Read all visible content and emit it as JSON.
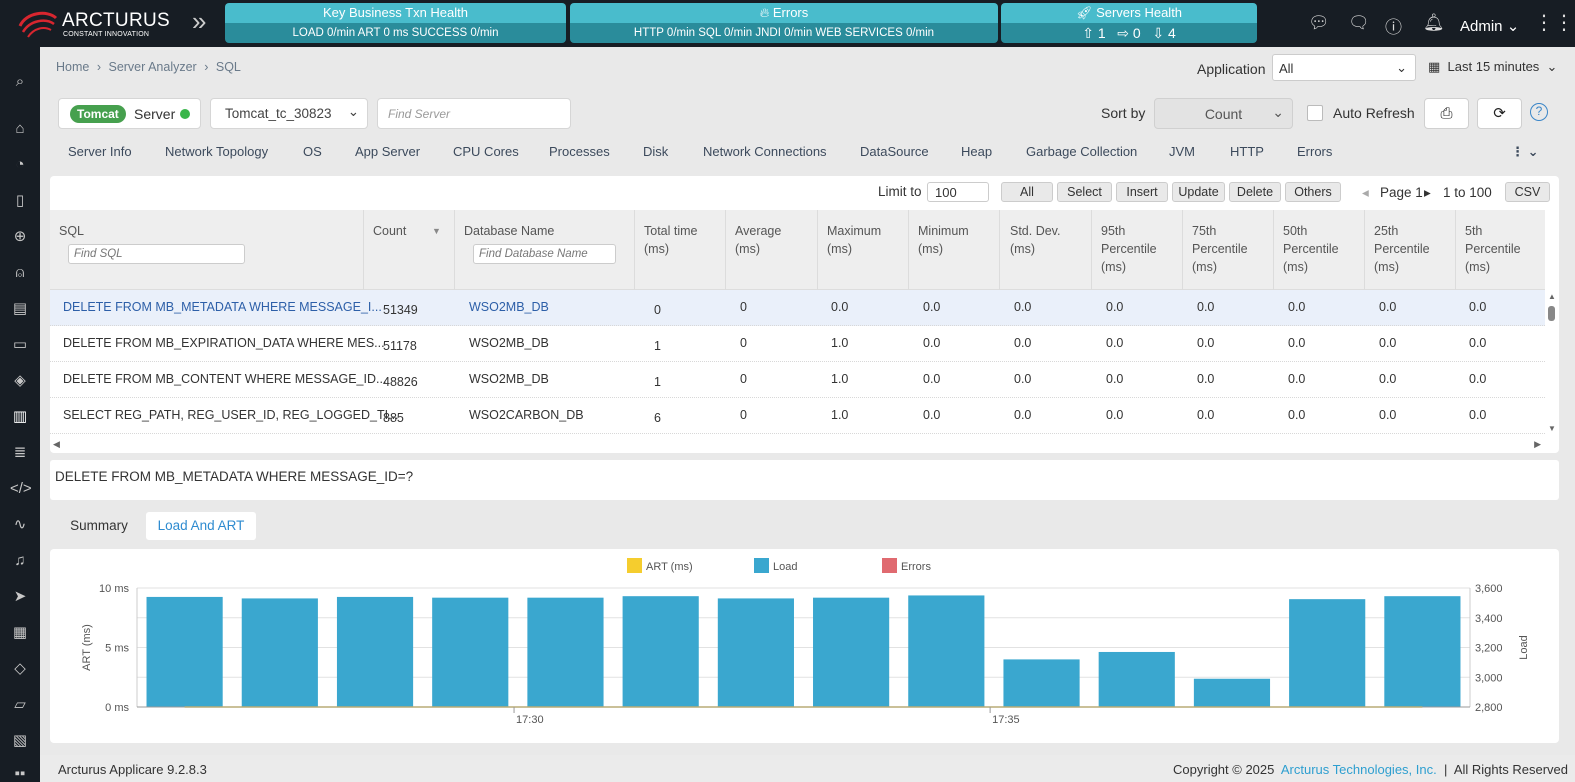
{
  "app": {
    "brand": "ARCTURUS",
    "tagline": "CONSTANT INNOVATION",
    "user": "Admin"
  },
  "kpis": [
    {
      "title": "Key Business Txn Health",
      "detail": "LOAD 0/min   ART 0 ms   SUCCESS 0/min"
    },
    {
      "title": "Errors",
      "detail": "HTTP 0/min   SQL 0/min   JNDI 0/min   WEB SERVICES 0/min"
    },
    {
      "title": "Servers Health",
      "up": "1",
      "right": "0",
      "down": "4"
    }
  ],
  "breadcrumb": [
    "Home",
    "Server Analyzer",
    "SQL"
  ],
  "breadcrumb_sep": "›",
  "application": {
    "label": "Application",
    "value": "All"
  },
  "time_range": "Last 15 minutes",
  "server": {
    "badge": "Tomcat",
    "label": "Server",
    "selected": "Tomcat_tc_30823",
    "find_placeholder": "Find Server"
  },
  "sort": {
    "label": "Sort by",
    "value": "Count"
  },
  "auto_refresh": {
    "label": "Auto Refresh",
    "checked": false
  },
  "tabs": [
    "Server Info",
    "Network Topology",
    "OS",
    "App Server",
    "CPU Cores",
    "Processes",
    "Disk",
    "Network Connections",
    "DataSource",
    "Heap",
    "Garbage Collection",
    "JVM",
    "HTTP",
    "Errors"
  ],
  "filters": {
    "limit_label": "Limit to",
    "limit_value": "100",
    "buttons": [
      "All",
      "Select",
      "Insert",
      "Update",
      "Delete",
      "Others"
    ],
    "page": "Page 1",
    "range": "1 to 100",
    "csv": "CSV"
  },
  "table": {
    "columns": [
      "SQL",
      "Count",
      "Database Name",
      "Total time (ms)",
      "Average (ms)",
      "Maximum (ms)",
      "Minimum (ms)",
      "Std. Dev. (ms)",
      "95th Percentile (ms)",
      "75th Percentile (ms)",
      "50th Percentile (ms)",
      "25th Percentile (ms)",
      "5th Percentile (ms)"
    ],
    "column_lines": [
      [
        "SQL"
      ],
      [
        "Count"
      ],
      [
        "Database Name"
      ],
      [
        "Total time",
        "(ms)"
      ],
      [
        "Average",
        "(ms)"
      ],
      [
        "Maximum",
        "(ms)"
      ],
      [
        "Minimum",
        "(ms)"
      ],
      [
        "Std. Dev.",
        "(ms)"
      ],
      [
        "95th",
        "Percentile",
        "(ms)"
      ],
      [
        "75th",
        "Percentile",
        "(ms)"
      ],
      [
        "50th",
        "Percentile",
        "(ms)"
      ],
      [
        "25th",
        "Percentile",
        "(ms)"
      ],
      [
        "5th",
        "Percentile",
        "(ms)"
      ]
    ],
    "find_sql_placeholder": "Find SQL",
    "find_db_placeholder": "Find Database Name",
    "rows": [
      [
        "DELETE FROM MB_METADATA WHERE MESSAGE_I...",
        "51349",
        "WSO2MB_DB",
        "0",
        "0",
        "0.0",
        "0.0",
        "0.0",
        "0.0",
        "0.0",
        "0.0",
        "0.0",
        "0.0"
      ],
      [
        "DELETE FROM MB_EXPIRATION_DATA WHERE MES...",
        "51178",
        "WSO2MB_DB",
        "1",
        "0",
        "1.0",
        "0.0",
        "0.0",
        "0.0",
        "0.0",
        "0.0",
        "0.0",
        "0.0"
      ],
      [
        "DELETE FROM MB_CONTENT WHERE MESSAGE_ID...",
        "48826",
        "WSO2MB_DB",
        "1",
        "0",
        "1.0",
        "0.0",
        "0.0",
        "0.0",
        "0.0",
        "0.0",
        "0.0",
        "0.0"
      ],
      [
        "SELECT REG_PATH, REG_USER_ID, REG_LOGGED_TI...",
        "885",
        "WSO2CARBON_DB",
        "6",
        "0",
        "1.0",
        "0.0",
        "0.0",
        "0.0",
        "0.0",
        "0.0",
        "0.0",
        "0.0"
      ]
    ]
  },
  "selected_sql": "DELETE FROM MB_METADATA WHERE MESSAGE_ID=?",
  "subtabs": [
    "Summary",
    "Load And ART"
  ],
  "chart_data": {
    "type": "bar",
    "legend": [
      "ART (ms)",
      "Load",
      "Errors"
    ],
    "colors": {
      "art": "#f5cd2e",
      "load": "#3aa7cf",
      "errors": "#e06a70"
    },
    "ylabel": "ART (ms)",
    "y2label": "Load",
    "y_ticks": [
      "10 ms",
      "5 ms",
      "0 ms"
    ],
    "y2_ticks": [
      "3,600",
      "3,400",
      "3,200",
      "3,000",
      "2,800"
    ],
    "ylim": [
      0,
      10
    ],
    "y2lim": [
      2800,
      3600
    ],
    "x_ticks": [
      "17:30",
      "17:35"
    ],
    "load": [
      3540,
      3530,
      3540,
      3535,
      3535,
      3545,
      3530,
      3535,
      3550,
      3120,
      3170,
      2990,
      3525,
      3545
    ],
    "art": [
      0,
      0,
      0,
      0,
      0,
      0,
      0,
      0,
      0,
      0,
      0,
      0,
      0,
      0
    ]
  },
  "footer": {
    "version": "Arcturus Applicare 9.2.8.3",
    "copyright": "Copyright © 2025",
    "company": "Arcturus Technologies, Inc.",
    "rights": "All Rights Reserved"
  }
}
